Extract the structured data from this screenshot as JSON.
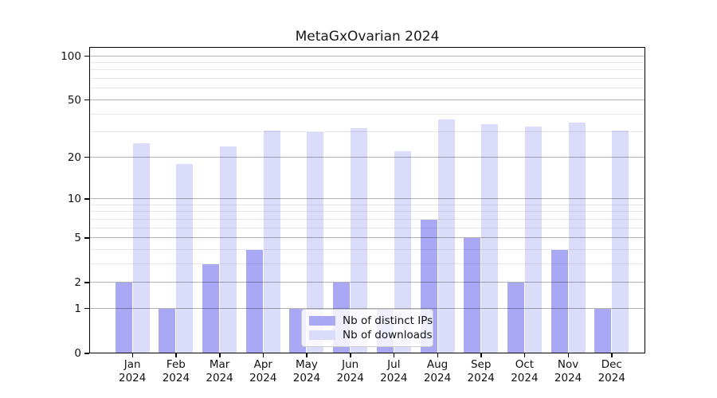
{
  "figure": {
    "title": "MetaGxOvarian 2024"
  },
  "chart_data": {
    "type": "bar",
    "title": "MetaGxOvarian 2024",
    "categories": [
      "Jan",
      "Feb",
      "Mar",
      "Apr",
      "May",
      "Jun",
      "Jul",
      "Aug",
      "Sep",
      "Oct",
      "Nov",
      "Dec"
    ],
    "category_year_label": "2024",
    "series": [
      {
        "name": "Nb of distinct IPs",
        "color": "#a8a8f5",
        "values": [
          2,
          1,
          3,
          4,
          1,
          2,
          1,
          7,
          5,
          2,
          4,
          1
        ]
      },
      {
        "name": "Nb of downloads",
        "color": "#dbdbfa",
        "values": [
          25,
          18,
          24,
          31,
          30,
          32,
          22,
          37,
          34,
          33,
          35,
          31
        ]
      }
    ],
    "y_axis": {
      "scale": "log1p",
      "tick_labels": [
        0,
        1,
        2,
        5,
        10,
        20,
        50,
        100
      ],
      "minor_gridlines": [
        3,
        4,
        6,
        7,
        8,
        9,
        30,
        40,
        60,
        70,
        80,
        90
      ],
      "range": [
        0,
        115.6
      ]
    },
    "legend": {
      "entries": [
        "Nb of distinct IPs",
        "Nb of downloads"
      ],
      "position": "lower-center"
    },
    "grid": true,
    "background_color": "#ffffff",
    "border_color": "#000000"
  }
}
